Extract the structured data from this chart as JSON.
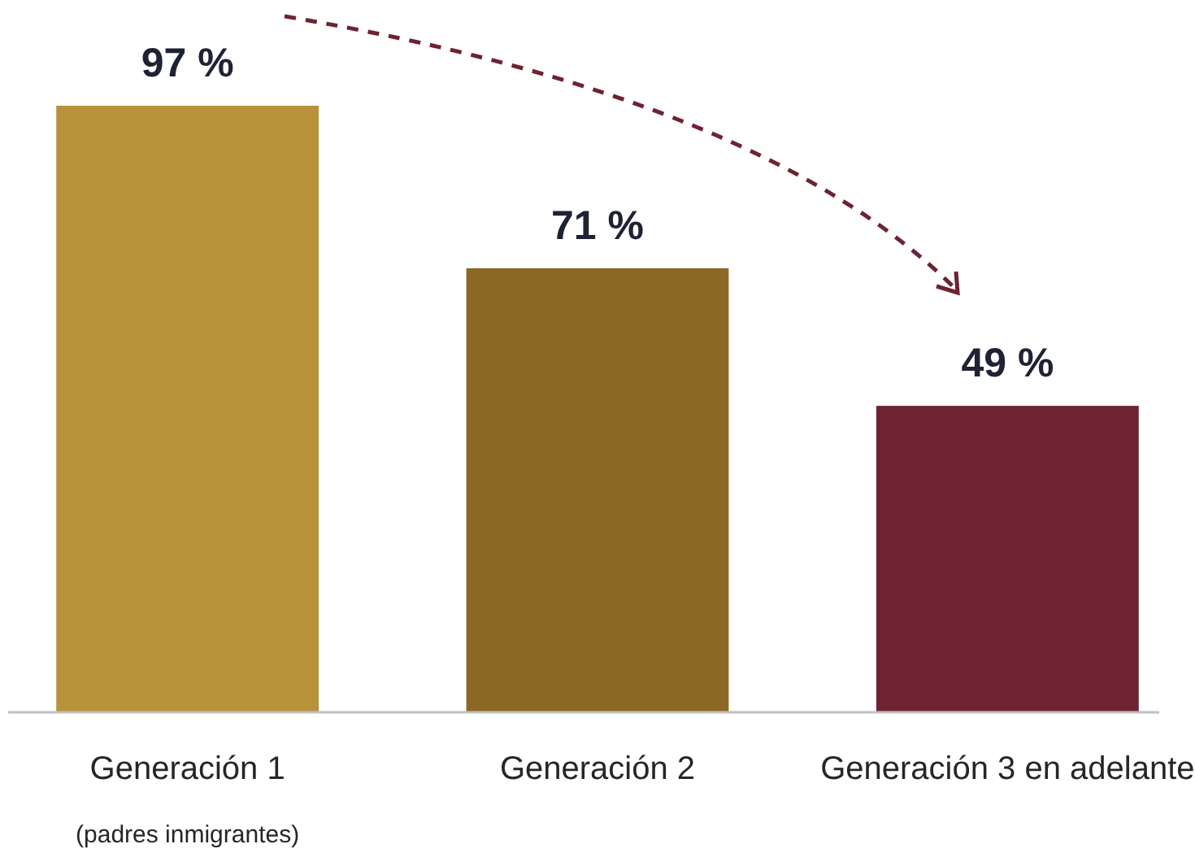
{
  "chart_data": {
    "type": "bar",
    "categories": [
      "Generación 1\n(padres inmigrantes)",
      "Generación 2",
      "Generación 3 en adelante"
    ],
    "values": [
      97,
      71,
      49
    ],
    "colors": [
      "#b8913b",
      "#8b6924",
      "#6d2330"
    ],
    "value_labels": [
      "97 %",
      "71 %",
      "49 %"
    ]
  }
}
